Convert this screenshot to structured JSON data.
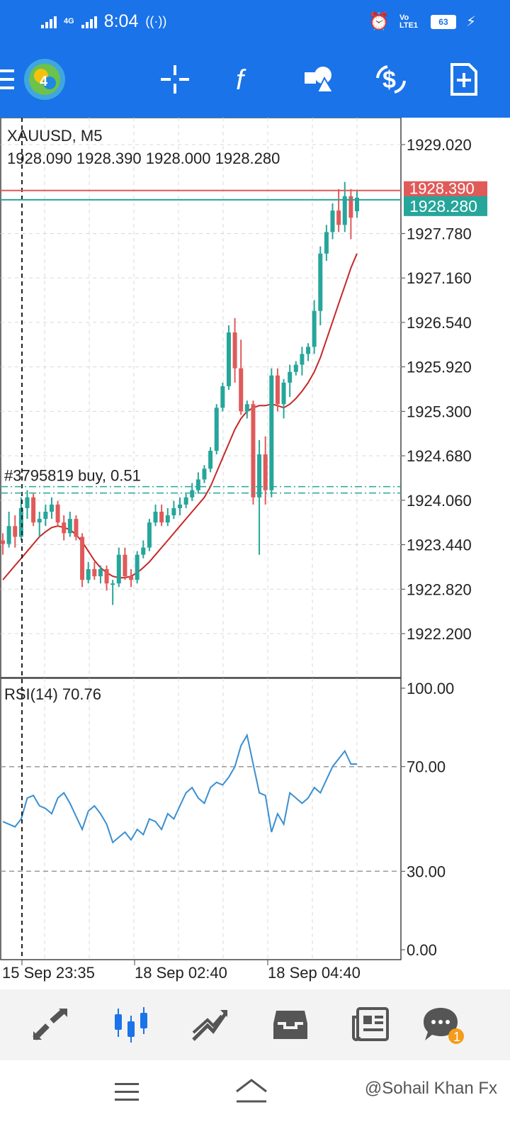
{
  "status_bar": {
    "network": "4G",
    "time": "8:04",
    "volte": "Vo LTE1",
    "battery": "63"
  },
  "toolbar": {
    "icons": [
      "menu-icon",
      "metatrader-logo",
      "crosshair-icon",
      "indicators-icon",
      "objects-icon",
      "symbols-icon",
      "new-order-icon"
    ]
  },
  "chart": {
    "symbol": "XAUUSD, M5",
    "ohlc": "1928.090 1928.390 1928.000 1928.280",
    "bid_label": "1928.280",
    "ask_label": "1928.390",
    "order_label": "#3795819 buy, 0.51",
    "price_ticks": [
      "1929.020",
      "1927.780",
      "1927.160",
      "1926.540",
      "1925.920",
      "1925.300",
      "1924.680",
      "1924.060",
      "1923.440",
      "1922.820",
      "1922.200"
    ],
    "time_labels": [
      "15 Sep 23:35",
      "18 Sep 02:40",
      "18 Sep 04:40"
    ],
    "colors": {
      "bull": "#26a69a",
      "bear": "#e05a5a",
      "ma": "#c62828",
      "rsi": "#3b8fd0",
      "accent": "#1a73e8"
    }
  },
  "rsi": {
    "label": "RSI(14) 70.76",
    "ticks": [
      "100.00",
      "70.00",
      "30.00",
      "0.00"
    ],
    "levels": [
      70,
      30
    ]
  },
  "bottom_nav": {
    "items": [
      "quotes-icon",
      "chart-icon",
      "trade-icon",
      "history-icon",
      "news-icon",
      "messages-icon"
    ],
    "messages_badge": "1"
  },
  "watermark": "@Sohail Khan Fx",
  "chart_data": {
    "type": "candlestick",
    "title": "XAUUSD, M5",
    "ylabel": "",
    "ylim": [
      1921.8,
      1929.5
    ],
    "candles": [
      [
        1923.5,
        1923.6,
        1923.3,
        1923.45
      ],
      [
        1923.45,
        1923.9,
        1923.4,
        1923.7
      ],
      [
        1923.7,
        1923.85,
        1923.4,
        1923.55
      ],
      [
        1923.55,
        1924.1,
        1923.5,
        1923.95
      ],
      [
        1923.95,
        1924.2,
        1923.8,
        1924.1
      ],
      [
        1924.1,
        1924.15,
        1923.7,
        1923.75
      ],
      [
        1923.75,
        1923.9,
        1923.55,
        1923.8
      ],
      [
        1923.8,
        1924.0,
        1923.7,
        1923.9
      ],
      [
        1923.9,
        1924.1,
        1923.8,
        1924.0
      ],
      [
        1924.0,
        1924.05,
        1923.7,
        1923.75
      ],
      [
        1923.75,
        1923.85,
        1923.5,
        1923.6
      ],
      [
        1923.6,
        1923.9,
        1923.55,
        1923.8
      ],
      [
        1923.8,
        1923.85,
        1923.5,
        1923.55
      ],
      [
        1923.55,
        1923.6,
        1922.85,
        1922.95
      ],
      [
        1922.95,
        1923.2,
        1922.9,
        1923.1
      ],
      [
        1923.1,
        1923.2,
        1922.95,
        1923.0
      ],
      [
        1923.0,
        1923.15,
        1922.9,
        1923.1
      ],
      [
        1923.1,
        1923.15,
        1922.8,
        1922.9
      ],
      [
        1922.9,
        1922.95,
        1922.6,
        1922.9
      ],
      [
        1922.9,
        1923.4,
        1922.85,
        1923.3
      ],
      [
        1923.3,
        1923.4,
        1922.95,
        1923.0
      ],
      [
        1923.0,
        1923.1,
        1922.85,
        1922.95
      ],
      [
        1922.95,
        1923.35,
        1922.9,
        1923.3
      ],
      [
        1923.3,
        1923.5,
        1923.25,
        1923.4
      ],
      [
        1923.4,
        1923.8,
        1923.35,
        1923.75
      ],
      [
        1923.75,
        1924.0,
        1923.7,
        1923.9
      ],
      [
        1923.9,
        1924.0,
        1923.7,
        1923.75
      ],
      [
        1923.75,
        1923.95,
        1923.7,
        1923.85
      ],
      [
        1923.85,
        1924.05,
        1923.8,
        1923.95
      ],
      [
        1923.95,
        1924.1,
        1923.85,
        1924.0
      ],
      [
        1924.0,
        1924.15,
        1923.95,
        1924.1
      ],
      [
        1924.1,
        1924.3,
        1924.05,
        1924.2
      ],
      [
        1924.2,
        1924.45,
        1924.15,
        1924.35
      ],
      [
        1924.35,
        1924.55,
        1924.3,
        1924.5
      ],
      [
        1924.5,
        1924.8,
        1924.45,
        1924.75
      ],
      [
        1924.75,
        1925.4,
        1924.7,
        1925.35
      ],
      [
        1925.35,
        1925.7,
        1925.3,
        1925.65
      ],
      [
        1925.65,
        1926.5,
        1925.6,
        1926.4
      ],
      [
        1926.4,
        1926.6,
        1925.7,
        1925.9
      ],
      [
        1925.9,
        1926.3,
        1925.25,
        1925.3
      ],
      [
        1925.3,
        1925.45,
        1925.2,
        1925.4
      ],
      [
        1925.4,
        1925.45,
        1924.0,
        1924.1
      ],
      [
        1924.1,
        1924.9,
        1923.3,
        1924.7
      ],
      [
        1924.7,
        1924.95,
        1924.0,
        1924.2
      ],
      [
        1924.2,
        1925.9,
        1924.1,
        1925.8
      ],
      [
        1925.8,
        1925.9,
        1925.3,
        1925.4
      ],
      [
        1925.4,
        1925.75,
        1925.2,
        1925.7
      ],
      [
        1925.7,
        1925.95,
        1925.5,
        1925.85
      ],
      [
        1925.85,
        1926.0,
        1925.8,
        1925.95
      ],
      [
        1925.95,
        1926.2,
        1925.8,
        1926.1
      ],
      [
        1926.1,
        1926.25,
        1926.0,
        1926.2
      ],
      [
        1926.2,
        1926.85,
        1926.1,
        1926.7
      ],
      [
        1926.7,
        1927.6,
        1926.5,
        1927.5
      ],
      [
        1927.5,
        1927.9,
        1927.4,
        1927.8
      ],
      [
        1927.8,
        1928.2,
        1927.7,
        1928.1
      ],
      [
        1928.1,
        1928.4,
        1927.8,
        1927.9
      ],
      [
        1927.9,
        1928.5,
        1927.8,
        1928.3
      ],
      [
        1928.3,
        1928.4,
        1927.7,
        1928.0
      ],
      [
        1928.09,
        1928.39,
        1928.0,
        1928.28
      ]
    ],
    "ma": [
      1922.95,
      1923.05,
      1923.15,
      1923.25,
      1923.35,
      1923.45,
      1923.55,
      1923.62,
      1923.68,
      1923.7,
      1923.68,
      1923.65,
      1923.58,
      1923.48,
      1923.35,
      1923.22,
      1923.12,
      1923.05,
      1923.0,
      1922.98,
      1922.98,
      1923.0,
      1923.05,
      1923.12,
      1923.2,
      1923.3,
      1923.4,
      1923.5,
      1923.6,
      1923.7,
      1923.8,
      1923.9,
      1924.0,
      1924.1,
      1924.25,
      1924.45,
      1924.65,
      1924.85,
      1925.05,
      1925.2,
      1925.3,
      1925.35,
      1925.38,
      1925.38,
      1925.4,
      1925.38,
      1925.35,
      1925.4,
      1925.48,
      1925.58,
      1925.7,
      1925.85,
      1926.05,
      1926.3,
      1926.55,
      1926.8,
      1927.05,
      1927.3,
      1927.5
    ],
    "rsi": [
      49,
      48,
      47,
      50,
      58,
      59,
      55,
      54,
      52,
      58,
      60,
      56,
      51,
      46,
      53,
      55,
      52,
      48,
      41,
      43,
      45,
      42,
      46,
      44,
      50,
      49,
      46,
      52,
      50,
      55,
      60,
      62,
      58,
      56,
      62,
      64,
      63,
      66,
      70,
      78,
      82,
      71,
      60,
      59,
      45,
      52,
      48,
      60,
      58,
      56,
      58,
      62,
      60,
      65,
      70,
      73,
      76,
      71,
      71
    ]
  }
}
